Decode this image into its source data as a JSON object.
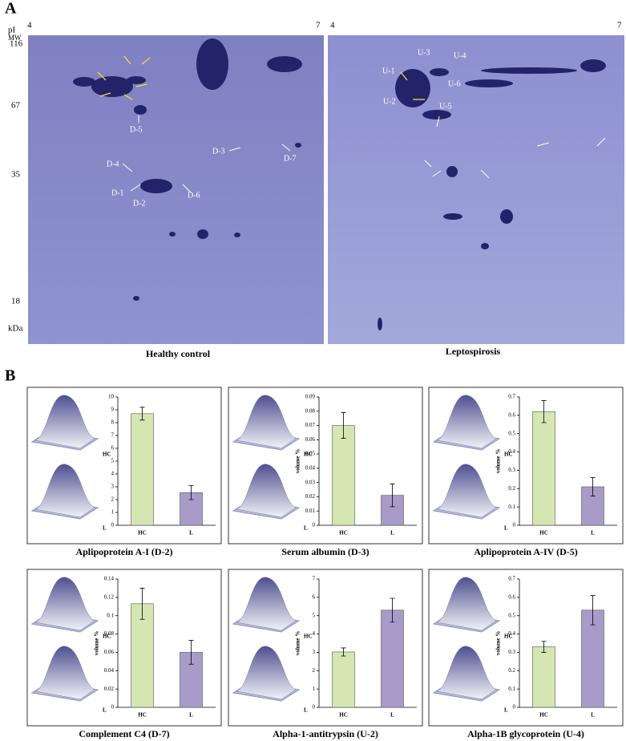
{
  "panel_a": {
    "label": "A",
    "pi_label": "pI",
    "mw_label": "MW",
    "ph_ticks": [
      4,
      7
    ],
    "mw_ticks": [
      116,
      67,
      35,
      18
    ],
    "unit": "kDa",
    "left_spots": [
      "D-1",
      "D-2",
      "D-3",
      "D-4",
      "D-5",
      "D-6",
      "D-7"
    ],
    "right_spots": [
      "U-1",
      "U-2",
      "U-3",
      "U-4",
      "U-5",
      "U-6"
    ],
    "captions": [
      "Healthy control",
      "Leptospirosis"
    ]
  },
  "panel_b": {
    "label": "B"
  },
  "chart_data": [
    {
      "type": "bar",
      "title": "Aplipoprotein A-I (D-2)",
      "categories": [
        "HC",
        "L"
      ],
      "values": [
        8.7,
        2.55
      ],
      "errors": [
        0.5,
        0.55
      ],
      "colors": [
        "#d5e6b3",
        "#a99bc9"
      ],
      "ylim": [
        0,
        10
      ],
      "yticks": [
        0,
        1,
        2,
        3,
        4,
        5,
        6,
        7,
        8,
        9,
        10
      ],
      "inset_labels": [
        "HC",
        "L"
      ]
    },
    {
      "type": "bar",
      "title": "Serum albumin (D-3)",
      "ylabel": "volume %",
      "categories": [
        "HC",
        "L"
      ],
      "values": [
        0.07,
        0.021
      ],
      "errors": [
        0.009,
        0.008
      ],
      "colors": [
        "#d5e6b3",
        "#a99bc9"
      ],
      "ylim": [
        0,
        0.09
      ],
      "yticks": [
        0,
        0.01,
        0.02,
        0.03,
        0.04,
        0.05,
        0.06,
        0.07,
        0.08,
        0.09
      ],
      "inset_labels": [
        "HC",
        "L"
      ]
    },
    {
      "type": "bar",
      "title": "Aplipoprotein A-IV (D-5)",
      "ylabel": "volume %",
      "categories": [
        "HC",
        "L"
      ],
      "values": [
        0.62,
        0.21
      ],
      "errors": [
        0.06,
        0.05
      ],
      "colors": [
        "#d5e6b3",
        "#a99bc9"
      ],
      "ylim": [
        0,
        0.7
      ],
      "yticks": [
        0,
        0.1,
        0.2,
        0.3,
        0.4,
        0.5,
        0.6,
        0.7
      ],
      "inset_labels": [
        "HC",
        "L"
      ]
    },
    {
      "type": "bar",
      "title": "Complement C4 (D-7)",
      "ylabel": "volume %",
      "categories": [
        "HC",
        "L"
      ],
      "values": [
        0.113,
        0.06
      ],
      "errors": [
        0.017,
        0.013
      ],
      "colors": [
        "#d5e6b3",
        "#a99bc9"
      ],
      "ylim": [
        0,
        0.14
      ],
      "yticks": [
        0,
        0.02,
        0.04,
        0.06,
        0.08,
        0.1,
        0.12,
        0.14
      ],
      "inset_labels": [
        "HC",
        "L"
      ]
    },
    {
      "type": "bar",
      "title": "Alpha-1-antitrypsin (U-2)",
      "ylabel": "volume %",
      "categories": [
        "HC",
        "L"
      ],
      "values": [
        3.02,
        5.3
      ],
      "errors": [
        0.22,
        0.65
      ],
      "colors": [
        "#d5e6b3",
        "#a99bc9"
      ],
      "ylim": [
        0,
        7
      ],
      "yticks": [
        0,
        1,
        2,
        3,
        4,
        5,
        6,
        7
      ],
      "inset_labels": [
        "HC",
        "L"
      ]
    },
    {
      "type": "bar",
      "title": "Alpha-1B glycoprotein (U-4)",
      "ylabel": "volume %",
      "categories": [
        "HC",
        "L"
      ],
      "values": [
        0.33,
        0.53
      ],
      "errors": [
        0.03,
        0.08
      ],
      "colors": [
        "#d5e6b3",
        "#a99bc9"
      ],
      "ylim": [
        0,
        0.7
      ],
      "yticks": [
        0,
        0.1,
        0.2,
        0.3,
        0.4,
        0.5,
        0.6,
        0.7
      ],
      "inset_labels": [
        "HC",
        "L"
      ]
    }
  ]
}
